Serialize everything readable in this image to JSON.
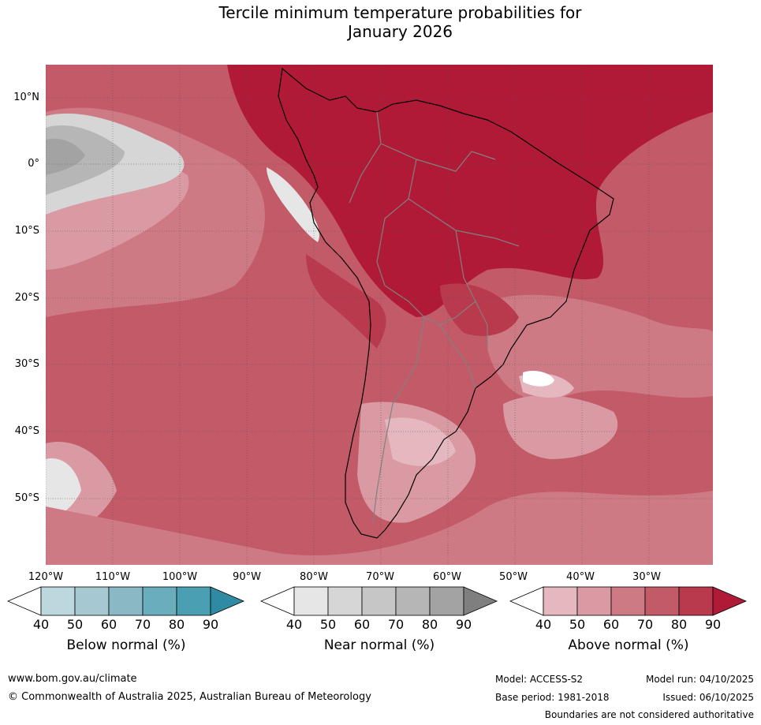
{
  "title_line1": "Tercile minimum temperature probabilities for",
  "title_line2": "January 2026",
  "latitude_labels": [
    "10°N",
    "0°",
    "10°S",
    "20°S",
    "30°S",
    "40°S",
    "50°S"
  ],
  "longitude_labels": [
    "120°W",
    "110°W",
    "100°W",
    "90°W",
    "80°W",
    "70°W",
    "60°W",
    "50°W",
    "40°W",
    "30°W"
  ],
  "colorbars": [
    {
      "title": "Below normal (%)",
      "ticks": [
        "40",
        "50",
        "60",
        "70",
        "80",
        "90"
      ],
      "colors": [
        "#ffffff",
        "#bdd7de",
        "#a6c9d1",
        "#8ab9c5",
        "#6aadbc",
        "#4aa0b2",
        "#2e8ba3"
      ]
    },
    {
      "title": "Near normal (%)",
      "ticks": [
        "40",
        "50",
        "60",
        "70",
        "80",
        "90"
      ],
      "colors": [
        "#ffffff",
        "#e6e6e6",
        "#d6d6d6",
        "#c6c6c6",
        "#b6b6b6",
        "#a3a3a3",
        "#7f7f7f"
      ]
    },
    {
      "title": "Above normal (%)",
      "ticks": [
        "40",
        "50",
        "60",
        "70",
        "80",
        "90"
      ],
      "colors": [
        "#ffffff",
        "#e5b8bf",
        "#d99aa3",
        "#ce7a85",
        "#c35a68",
        "#b93a4c",
        "#b11a36"
      ]
    }
  ],
  "footer": {
    "website": "www.bom.gov.au/climate",
    "copyright": "© Commonwealth of Australia 2025, Australian Bureau of Meteorology",
    "model": "Model: ACCESS-S2",
    "base_period": "Base period: 1981-2018",
    "model_run": "Model run: 04/10/2025",
    "issued": "Issued: 06/10/2025",
    "disclaimer": "Boundaries are not considered authoritative"
  }
}
